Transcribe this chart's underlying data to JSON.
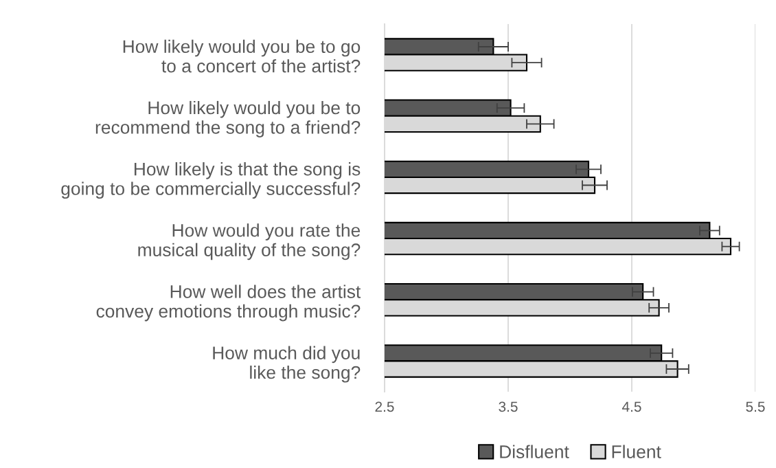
{
  "chart_data": {
    "type": "bar",
    "orientation": "horizontal",
    "categories": [
      "How likely would you be to go to a concert of the artist?",
      "How likely would you be to recommend the song to a friend?",
      "How likely is that the song is going to be commercially successful?",
      "How would you rate the musical quality of the song?",
      "How well does the artist convey emotions through music?",
      "How much did you like the song?"
    ],
    "series": [
      {
        "name": "Disfluent",
        "color": "#595959",
        "values": [
          3.38,
          3.52,
          4.15,
          5.13,
          4.59,
          4.74
        ],
        "errors": [
          0.12,
          0.11,
          0.1,
          0.08,
          0.085,
          0.09
        ]
      },
      {
        "name": "Fluent",
        "color": "#d9d9d9",
        "values": [
          3.65,
          3.76,
          4.2,
          5.3,
          4.72,
          4.87
        ],
        "errors": [
          0.12,
          0.11,
          0.1,
          0.07,
          0.08,
          0.09
        ]
      }
    ],
    "xlim": [
      2.5,
      5.5
    ],
    "xticks": [
      2.5,
      3.5,
      4.5,
      5.5
    ],
    "grid": "x",
    "legend": "bottom"
  }
}
